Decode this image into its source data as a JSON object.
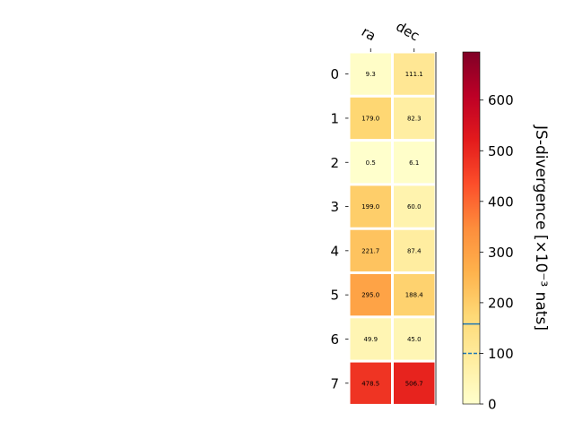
{
  "chart_data": {
    "type": "heatmap",
    "columns": [
      "ra",
      "dec"
    ],
    "rows": [
      "0",
      "1",
      "2",
      "3",
      "4",
      "5",
      "6",
      "7"
    ],
    "values": [
      [
        9.3,
        111.1
      ],
      [
        179.0,
        82.3
      ],
      [
        0.5,
        6.1
      ],
      [
        199.0,
        60.0
      ],
      [
        221.7,
        87.4
      ],
      [
        295.0,
        188.4
      ],
      [
        49.9,
        45.0
      ],
      [
        478.5,
        506.7
      ]
    ],
    "cell_labels": [
      [
        "9.3",
        "111.1"
      ],
      [
        "179.0",
        "82.3"
      ],
      [
        "0.5",
        "6.1"
      ],
      [
        "199.0",
        "60.0"
      ],
      [
        "221.7",
        "87.4"
      ],
      [
        "295.0",
        "188.4"
      ],
      [
        "49.9",
        "45.0"
      ],
      [
        "478.5",
        "506.7"
      ]
    ],
    "colorbar": {
      "label": "JS-divergence [×10⁻³ nats]",
      "range": [
        0,
        695
      ],
      "ticks": [
        0,
        100,
        200,
        300,
        400,
        500,
        600
      ],
      "tick_labels": [
        "0",
        "100",
        "200",
        "300",
        "400",
        "500",
        "600"
      ],
      "colormap": "YlOrRd",
      "reference_lines": [
        {
          "value": 158,
          "style": "solid",
          "color": "#1f77b4"
        },
        {
          "value": 100,
          "style": "dashed",
          "color": "#1f77b4"
        }
      ]
    },
    "grid": false
  }
}
